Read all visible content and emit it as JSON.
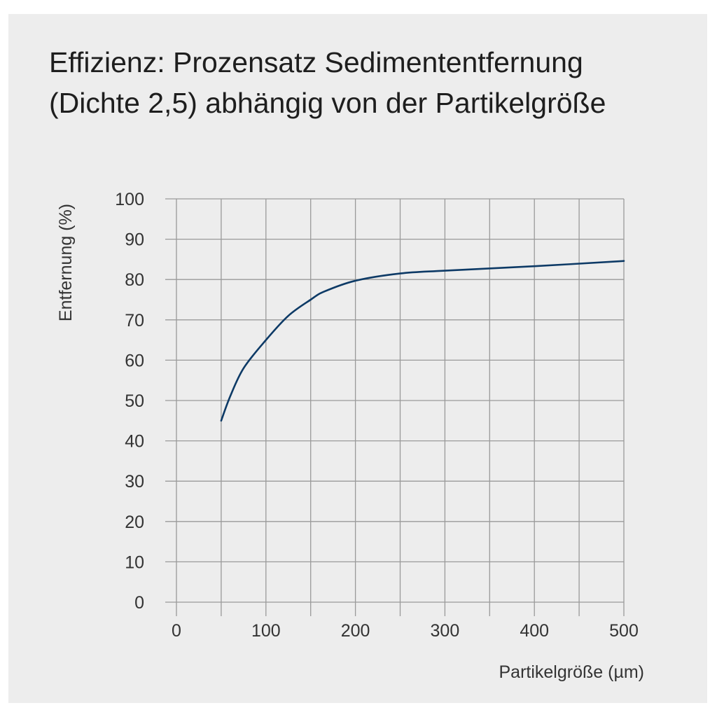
{
  "chart_data": {
    "type": "line",
    "title_lines": [
      "Effizienz: Prozensatz Sedimententfernung",
      "(Dichte 2,5) abhängig von der Partikelgröße"
    ],
    "xlabel": "Partikelgröße (µm)",
    "ylabel": "Entfernung (%)",
    "xlim": [
      0,
      500
    ],
    "ylim": [
      0,
      100
    ],
    "x_ticks": [
      0,
      100,
      200,
      300,
      400,
      500
    ],
    "y_ticks": [
      0,
      10,
      20,
      30,
      40,
      50,
      60,
      70,
      80,
      90,
      100
    ],
    "x_grid_step": 50,
    "grid": true,
    "line_color": "#0d3a66",
    "grid_color": "#9a9a9a",
    "series": [
      {
        "x": [
          50,
          60,
          75,
          100,
          125,
          150,
          165,
          200,
          250,
          300,
          400,
          500
        ],
        "y": [
          45,
          51,
          58,
          65,
          71,
          75,
          77,
          79.7,
          81.5,
          82.2,
          83.3,
          84.6
        ]
      }
    ]
  }
}
